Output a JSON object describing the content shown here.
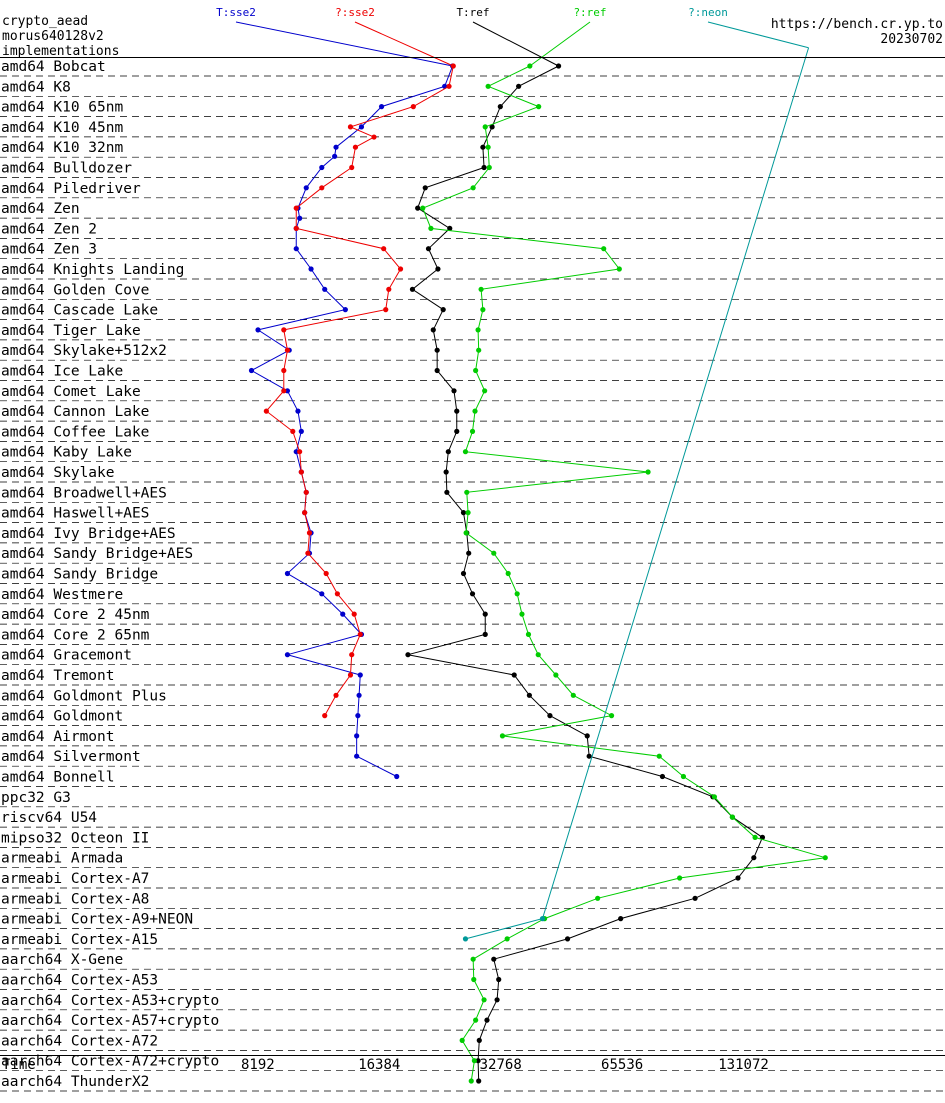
{
  "header": {
    "left_lines": [
      "crypto_aead",
      "morus640128v2",
      "implementations"
    ],
    "right_lines": [
      "https://bench.cr.yp.to",
      "20230702"
    ]
  },
  "chart_data": {
    "type": "line",
    "x_scale": "log2",
    "xlabel": "Time",
    "x_ticks": [
      8192,
      16384,
      32768,
      65536,
      131072
    ],
    "xlim": [
      2048,
      380000
    ],
    "rows": [
      "amd64 Bobcat",
      "amd64 K8",
      "amd64 K10 65nm",
      "amd64 K10 45nm",
      "amd64 K10 32nm",
      "amd64 Bulldozer",
      "amd64 Piledriver",
      "amd64 Zen",
      "amd64 Zen 2",
      "amd64 Zen 3",
      "amd64 Knights Landing",
      "amd64 Golden Cove",
      "amd64 Cascade Lake",
      "amd64 Tiger Lake",
      "amd64 Skylake+512x2",
      "amd64 Ice Lake",
      "amd64 Comet Lake",
      "amd64 Cannon Lake",
      "amd64 Coffee Lake",
      "amd64 Kaby Lake",
      "amd64 Skylake",
      "amd64 Broadwell+AES",
      "amd64 Haswell+AES",
      "amd64 Ivy Bridge+AES",
      "amd64 Sandy Bridge+AES",
      "amd64 Sandy Bridge",
      "amd64 Westmere",
      "amd64 Core 2 45nm",
      "amd64 Core 2 65nm",
      "amd64 Gracemont",
      "amd64 Tremont",
      "amd64 Goldmont Plus",
      "amd64 Goldmont",
      "amd64 Airmont",
      "amd64 Silvermont",
      "amd64 Bonnell",
      "ppc32 G3",
      "riscv64 U54",
      "mipso32 Octeon II",
      "armeabi Armada",
      "armeabi Cortex-A7",
      "armeabi Cortex-A8",
      "armeabi Cortex-A9+NEON",
      "armeabi Cortex-A15",
      "aarch64 X-Gene",
      "aarch64 Cortex-A53",
      "aarch64 Cortex-A53+crypto",
      "aarch64 Cortex-A57+crypto",
      "aarch64 Cortex-A72",
      "aarch64 Cortex-A72+crypto",
      "aarch64 ThunderX2"
    ],
    "series": [
      {
        "name": "T:sse2",
        "color": "#0000cc",
        "label_x": 236,
        "points": [
          [
            0,
            24900
          ],
          [
            1,
            23800
          ],
          [
            2,
            16600
          ],
          [
            3,
            14800
          ],
          [
            4,
            12800
          ],
          [
            4.45,
            12700
          ],
          [
            5,
            11800
          ],
          [
            6,
            10800
          ],
          [
            7,
            10300
          ],
          [
            7.5,
            10400
          ],
          [
            8,
            10200
          ],
          [
            9,
            10200
          ],
          [
            10,
            11100
          ],
          [
            11,
            12000
          ],
          [
            12,
            13500
          ],
          [
            13,
            8200
          ],
          [
            14,
            9800
          ],
          [
            15,
            7900
          ],
          [
            16,
            9700
          ],
          [
            17,
            10300
          ],
          [
            18,
            10500
          ],
          [
            19,
            10200
          ],
          [
            20,
            10500
          ],
          [
            21,
            10800
          ],
          [
            22,
            10700
          ],
          [
            23,
            11100
          ],
          [
            24,
            11000
          ],
          [
            25,
            9700
          ],
          [
            26,
            11800
          ],
          [
            27,
            13300
          ],
          [
            28,
            14800
          ],
          [
            29,
            9700
          ],
          [
            30,
            14700
          ],
          [
            31,
            14600
          ],
          [
            32,
            14500
          ],
          [
            33,
            14400
          ],
          [
            34,
            14400
          ],
          [
            35,
            18100
          ]
        ]
      },
      {
        "name": "?:sse2",
        "color": "#ee0000",
        "label_x": 355,
        "points": [
          [
            0,
            25000
          ],
          [
            1,
            24400
          ],
          [
            2,
            19900
          ],
          [
            3,
            13900
          ],
          [
            3.5,
            15900
          ],
          [
            4,
            14300
          ],
          [
            5,
            14000
          ],
          [
            6,
            11800
          ],
          [
            7,
            10200
          ],
          [
            8,
            10200
          ],
          [
            9,
            16800
          ],
          [
            10,
            18500
          ],
          [
            11,
            17300
          ],
          [
            12,
            17000
          ],
          [
            13,
            9500
          ],
          [
            14,
            9700
          ],
          [
            15,
            9500
          ],
          [
            16,
            9500
          ],
          [
            17,
            8600
          ],
          [
            18,
            10000
          ],
          [
            19,
            10400
          ],
          [
            20,
            10500
          ],
          [
            21,
            10800
          ],
          [
            22,
            10700
          ],
          [
            23,
            11000
          ],
          [
            24,
            10900
          ],
          [
            25,
            12100
          ],
          [
            26,
            12900
          ],
          [
            27,
            14200
          ],
          [
            28,
            14700
          ],
          [
            29,
            14000
          ],
          [
            30,
            13900
          ],
          [
            31,
            12800
          ],
          [
            32,
            12000
          ]
        ]
      },
      {
        "name": "T:ref",
        "color": "#000000",
        "label_x": 473,
        "points": [
          [
            0,
            45600
          ],
          [
            1,
            36300
          ],
          [
            2,
            32700
          ],
          [
            3,
            31200
          ],
          [
            4,
            29600
          ],
          [
            5,
            29800
          ],
          [
            6,
            21300
          ],
          [
            7,
            20400
          ],
          [
            8,
            24500
          ],
          [
            9,
            21700
          ],
          [
            10,
            22900
          ],
          [
            11,
            19800
          ],
          [
            12,
            23600
          ],
          [
            13,
            22300
          ],
          [
            14,
            22800
          ],
          [
            15,
            22800
          ],
          [
            16,
            25100
          ],
          [
            17,
            25500
          ],
          [
            18,
            25500
          ],
          [
            19,
            24300
          ],
          [
            20,
            24000
          ],
          [
            21,
            24100
          ],
          [
            22,
            26500
          ],
          [
            23,
            27000
          ],
          [
            24,
            27300
          ],
          [
            25,
            26500
          ],
          [
            26,
            27900
          ],
          [
            27,
            30000
          ],
          [
            28,
            30000
          ],
          [
            29,
            19300
          ],
          [
            30,
            35400
          ],
          [
            31,
            38600
          ],
          [
            32,
            43400
          ],
          [
            33,
            53700
          ],
          [
            34,
            54300
          ],
          [
            35,
            82500
          ],
          [
            36,
            110000
          ],
          [
            37,
            123000
          ],
          [
            38,
            146000
          ],
          [
            39,
            139000
          ],
          [
            40,
            127000
          ],
          [
            41,
            99400
          ],
          [
            42,
            65000
          ],
          [
            43,
            48000
          ],
          [
            44,
            31500
          ],
          [
            45,
            32400
          ],
          [
            46,
            32100
          ],
          [
            47,
            30300
          ],
          [
            48,
            29000
          ],
          [
            49,
            28800
          ],
          [
            50,
            28900
          ]
        ]
      },
      {
        "name": "?:ref",
        "color": "#00cc00",
        "label_x": 590,
        "points": [
          [
            0,
            38700
          ],
          [
            1,
            30500
          ],
          [
            2,
            40700
          ],
          [
            3,
            30000
          ],
          [
            4,
            30500
          ],
          [
            5,
            30700
          ],
          [
            6,
            28000
          ],
          [
            7,
            21000
          ],
          [
            8,
            22000
          ],
          [
            9,
            59000
          ],
          [
            10,
            64500
          ],
          [
            11,
            29300
          ],
          [
            12,
            29600
          ],
          [
            13,
            28800
          ],
          [
            14,
            28900
          ],
          [
            15,
            28400
          ],
          [
            16,
            29900
          ],
          [
            17,
            28300
          ],
          [
            18,
            27900
          ],
          [
            19,
            26800
          ],
          [
            20,
            76000
          ],
          [
            21,
            27000
          ],
          [
            22,
            27200
          ],
          [
            23,
            26900
          ],
          [
            24,
            31500
          ],
          [
            25,
            34200
          ],
          [
            26,
            36000
          ],
          [
            27,
            37000
          ],
          [
            28,
            38400
          ],
          [
            29,
            40600
          ],
          [
            30,
            44900
          ],
          [
            31,
            49600
          ],
          [
            32,
            61700
          ],
          [
            33,
            33100
          ],
          [
            34,
            81000
          ],
          [
            35,
            93000
          ],
          [
            36,
            111000
          ],
          [
            37,
            123000
          ],
          [
            38,
            140000
          ],
          [
            39,
            209000
          ],
          [
            40,
            91000
          ],
          [
            41,
            57000
          ],
          [
            42,
            42100
          ],
          [
            43,
            34000
          ],
          [
            44,
            28000
          ],
          [
            45,
            28100
          ],
          [
            46,
            29800
          ],
          [
            47,
            28400
          ],
          [
            48,
            26300
          ],
          [
            49,
            28200
          ],
          [
            50,
            27700
          ]
        ]
      },
      {
        "name": "?:neon",
        "color": "#009999",
        "label_x": 708,
        "points": [
          [
            -0.9,
            190000
          ],
          [
            42,
            41600
          ],
          [
            43,
            26800
          ]
        ]
      }
    ]
  },
  "row_annotation_style": {
    "text_color": "#444444",
    "flag_color": "#cc0000"
  }
}
